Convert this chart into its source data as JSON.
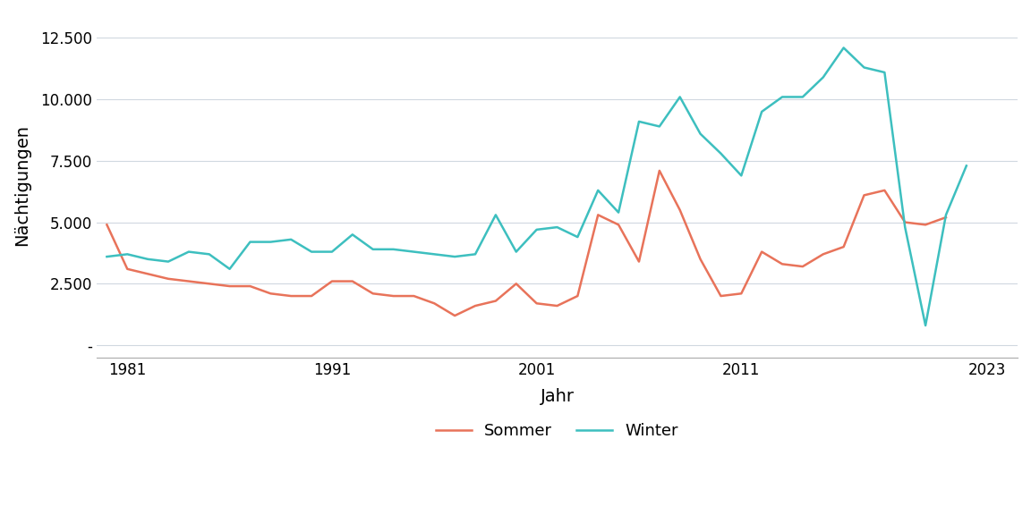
{
  "years": [
    1980,
    1981,
    1982,
    1983,
    1984,
    1985,
    1986,
    1987,
    1988,
    1989,
    1990,
    1991,
    1992,
    1993,
    1994,
    1995,
    1996,
    1997,
    1998,
    1999,
    2000,
    2001,
    2002,
    2003,
    2004,
    2005,
    2006,
    2007,
    2008,
    2009,
    2010,
    2011,
    2012,
    2013,
    2014,
    2015,
    2016,
    2017,
    2018,
    2019,
    2020,
    2021,
    2022,
    2023
  ],
  "sommer": [
    4900,
    3100,
    2900,
    2700,
    2600,
    2500,
    2400,
    2400,
    2100,
    2000,
    2000,
    2600,
    2600,
    2100,
    2000,
    2000,
    1700,
    1200,
    1600,
    1800,
    2500,
    1700,
    1600,
    2000,
    5300,
    4900,
    3400,
    7100,
    5500,
    3500,
    2000,
    2100,
    3800,
    3300,
    3200,
    3700,
    4000,
    6100,
    6300,
    5000,
    4900,
    5200,
    null,
    null
  ],
  "winter": [
    3600,
    3700,
    3500,
    3400,
    3800,
    3700,
    3100,
    4200,
    4200,
    4300,
    3800,
    3800,
    4500,
    3900,
    3900,
    3800,
    3700,
    3600,
    3700,
    5300,
    3800,
    4700,
    4800,
    4400,
    6300,
    5400,
    9100,
    8900,
    10100,
    8600,
    7800,
    6900,
    9500,
    10100,
    10100,
    10900,
    12100,
    11300,
    11100,
    4800,
    800,
    5300,
    7300,
    null
  ],
  "sommer_color": "#E8735A",
  "winter_color": "#3DBFBF",
  "plot_bg_color": "#FFFFFF",
  "fig_bg_color": "#FFFFFF",
  "grid_color": "#D0D8E0",
  "line_width": 1.8,
  "xlabel": "Jahr",
  "ylabel": "Nächtigungen",
  "legend_labels": [
    "Sommer",
    "Winter"
  ],
  "ytick_labels": [
    "-",
    "2.500",
    "5.000",
    "7.500",
    "10.000",
    "12.500"
  ],
  "ytick_values": [
    0,
    2500,
    5000,
    7500,
    10000,
    12500
  ],
  "xtick_values": [
    1981,
    1991,
    2001,
    2011,
    2023
  ],
  "ylim": [
    -500,
    13500
  ],
  "xlim": [
    1979.5,
    2024.5
  ],
  "axis_fontsize": 14,
  "tick_fontsize": 12,
  "legend_fontsize": 13
}
